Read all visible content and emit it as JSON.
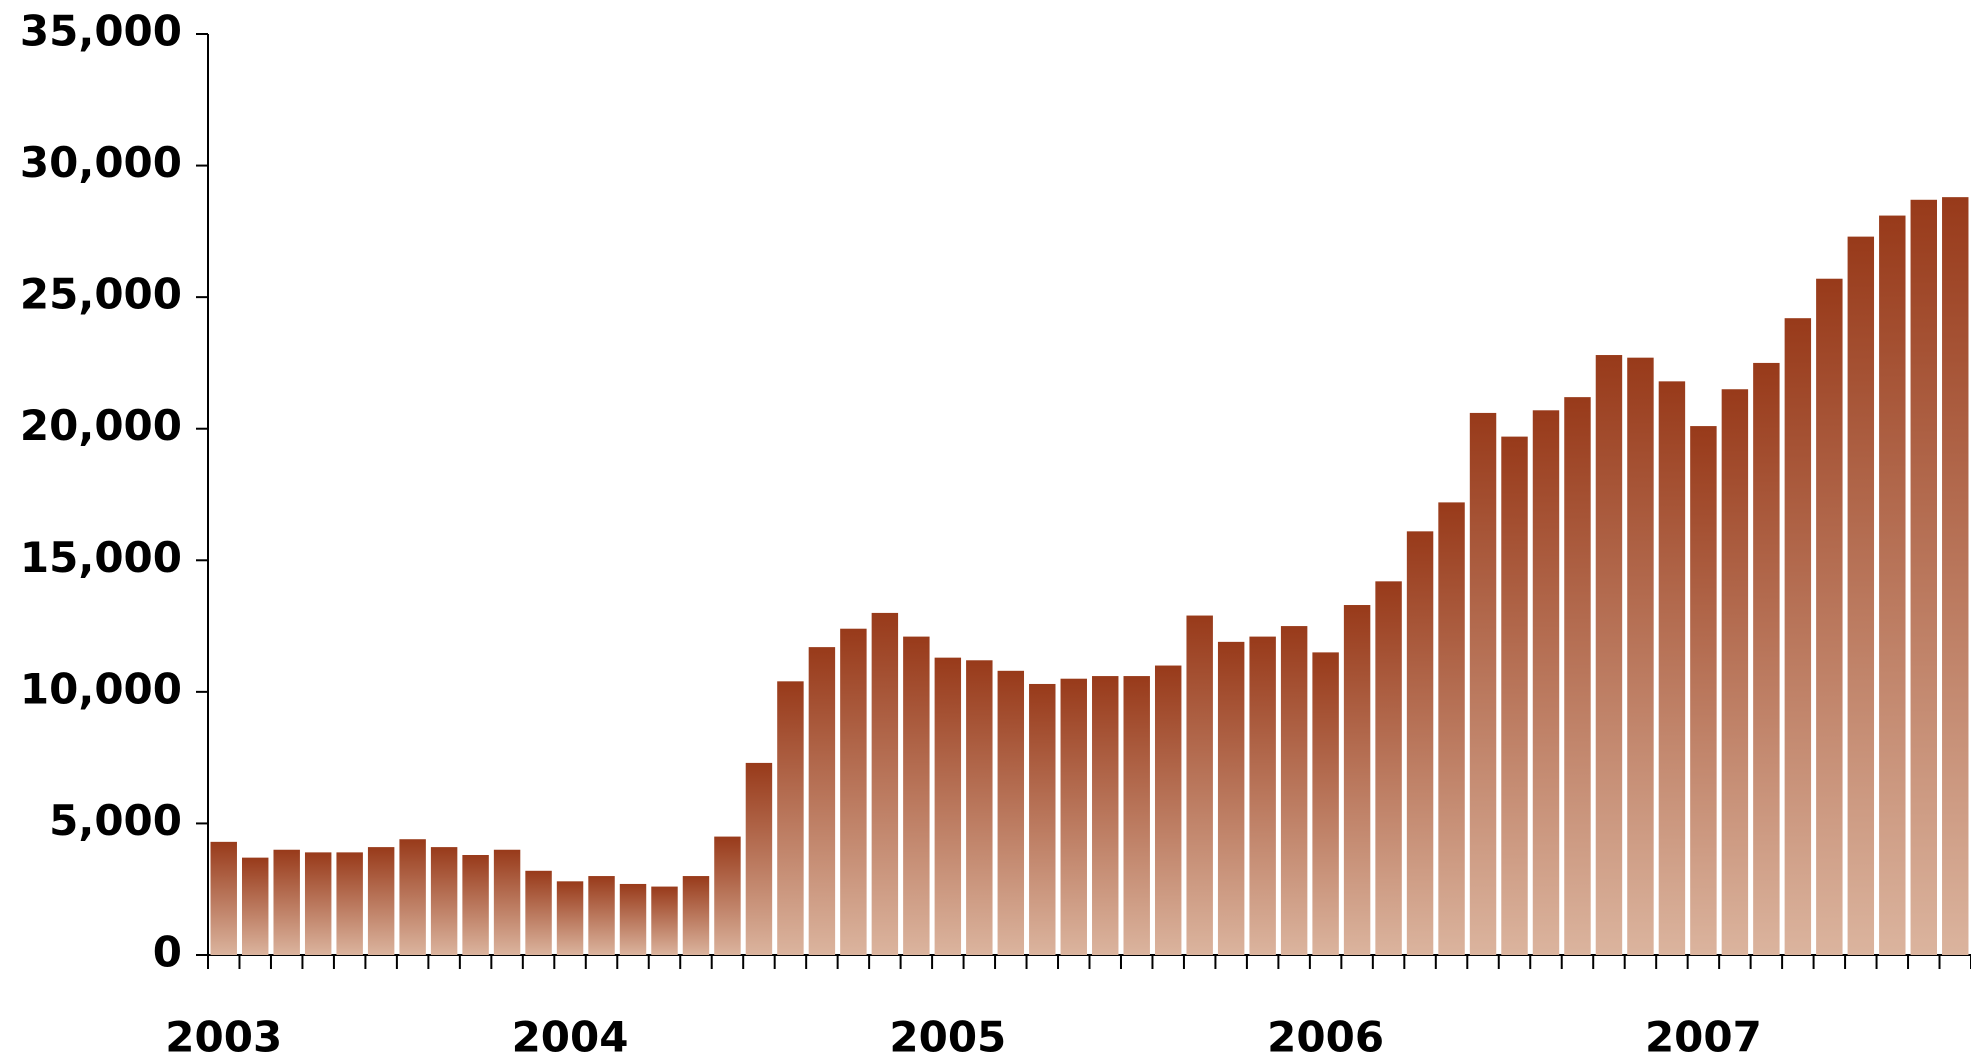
{
  "chart_data": {
    "type": "bar",
    "categories": [
      "2003",
      null,
      null,
      null,
      null,
      null,
      null,
      null,
      null,
      null,
      null,
      "2004",
      null,
      null,
      null,
      null,
      null,
      null,
      null,
      null,
      null,
      null,
      null,
      "2005",
      null,
      null,
      null,
      null,
      null,
      null,
      null,
      null,
      null,
      null,
      null,
      "2006",
      null,
      null,
      null,
      null,
      null,
      null,
      null,
      null,
      null,
      null,
      null,
      "2007",
      null,
      null,
      null,
      null,
      null,
      null,
      null,
      null
    ],
    "values": [
      4300,
      3700,
      4000,
      3900,
      3900,
      4100,
      4400,
      4100,
      3800,
      4000,
      3200,
      2800,
      3000,
      2700,
      2600,
      3000,
      4500,
      7300,
      10400,
      11700,
      12400,
      13000,
      12100,
      11300,
      11200,
      10800,
      10300,
      10500,
      10600,
      10600,
      11000,
      12900,
      11900,
      12100,
      12500,
      11500,
      13300,
      14200,
      16100,
      17200,
      20600,
      19700,
      20700,
      21200,
      22800,
      22700,
      21800,
      20100,
      21500,
      22500,
      24200,
      25700,
      27300,
      28100,
      28700,
      28800
    ],
    "color": [
      "#983a1a",
      "#dbb49e"
    ],
    "ylim": [
      0,
      35000
    ],
    "yticks": [
      0,
      {
        "value": 5000,
        "label": "5,000"
      },
      {
        "value": 10000,
        "label": "10,000"
      },
      {
        "value": 15000,
        "label": "15,000"
      },
      {
        "value": 20000,
        "label": "20,000"
      },
      {
        "value": 25000,
        "label": "25,000"
      },
      {
        "value": 30000,
        "label": "30,000"
      },
      {
        "value": 35000,
        "label": "35,000"
      }
    ],
    "grid": false
  }
}
